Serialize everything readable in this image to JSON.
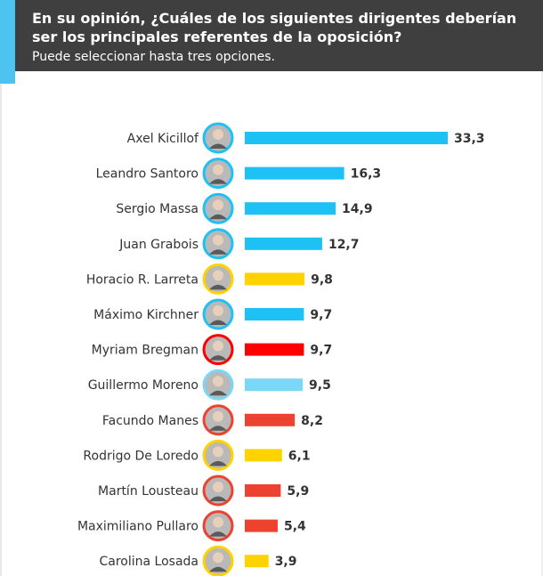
{
  "header": {
    "question": "En su opinión, ¿Cuáles de los siguientes dirigentes deberían ser los principales referentes de la oposición?",
    "subtitle": "Puede seleccionar hasta tres opciones."
  },
  "chart_data": {
    "type": "bar",
    "orientation": "horizontal",
    "title": "En su opinión, ¿Cuáles de los siguientes dirigentes deberían ser los principales referentes de la oposición?",
    "subtitle": "Puede seleccionar hasta tres opciones.",
    "xlim": [
      0,
      35
    ],
    "grid": false,
    "categories": [
      "Axel Kicillof",
      "Leandro Santoro",
      "Sergio Massa",
      "Juan Grabois",
      "Horacio R. Larreta",
      "Máximo Kirchner",
      "Myriam Bregman",
      "Guillermo Moreno",
      "Facundo Manes",
      "Rodrigo De Loredo",
      "Martín Lousteau",
      "Maximiliano Pullaro",
      "Carolina Losada"
    ],
    "values": [
      33.3,
      16.3,
      14.9,
      12.7,
      9.8,
      9.7,
      9.7,
      9.5,
      8.2,
      6.1,
      5.9,
      5.4,
      3.9
    ],
    "value_labels": [
      "33,3",
      "16,3",
      "14,9",
      "12,7",
      "9,8",
      "9,7",
      "9,7",
      "9,5",
      "8,2",
      "6,1",
      "5,9",
      "5,4",
      "3,9"
    ],
    "colors": [
      "#1ec1f3",
      "#1ec1f3",
      "#1ec1f3",
      "#1ec1f3",
      "#ffd200",
      "#1ec1f3",
      "#ff0000",
      "#7bd7f7",
      "#ee4231",
      "#ffd200",
      "#ee4231",
      "#ee4231",
      "#ffd200"
    ],
    "avatar_icons": [
      "person-avatar-icon",
      "person-avatar-icon",
      "person-avatar-icon",
      "person-avatar-icon",
      "person-avatar-icon",
      "person-avatar-icon",
      "person-avatar-icon",
      "person-avatar-icon",
      "person-avatar-icon",
      "person-avatar-icon",
      "person-avatar-icon",
      "person-avatar-icon",
      "person-avatar-icon"
    ]
  }
}
